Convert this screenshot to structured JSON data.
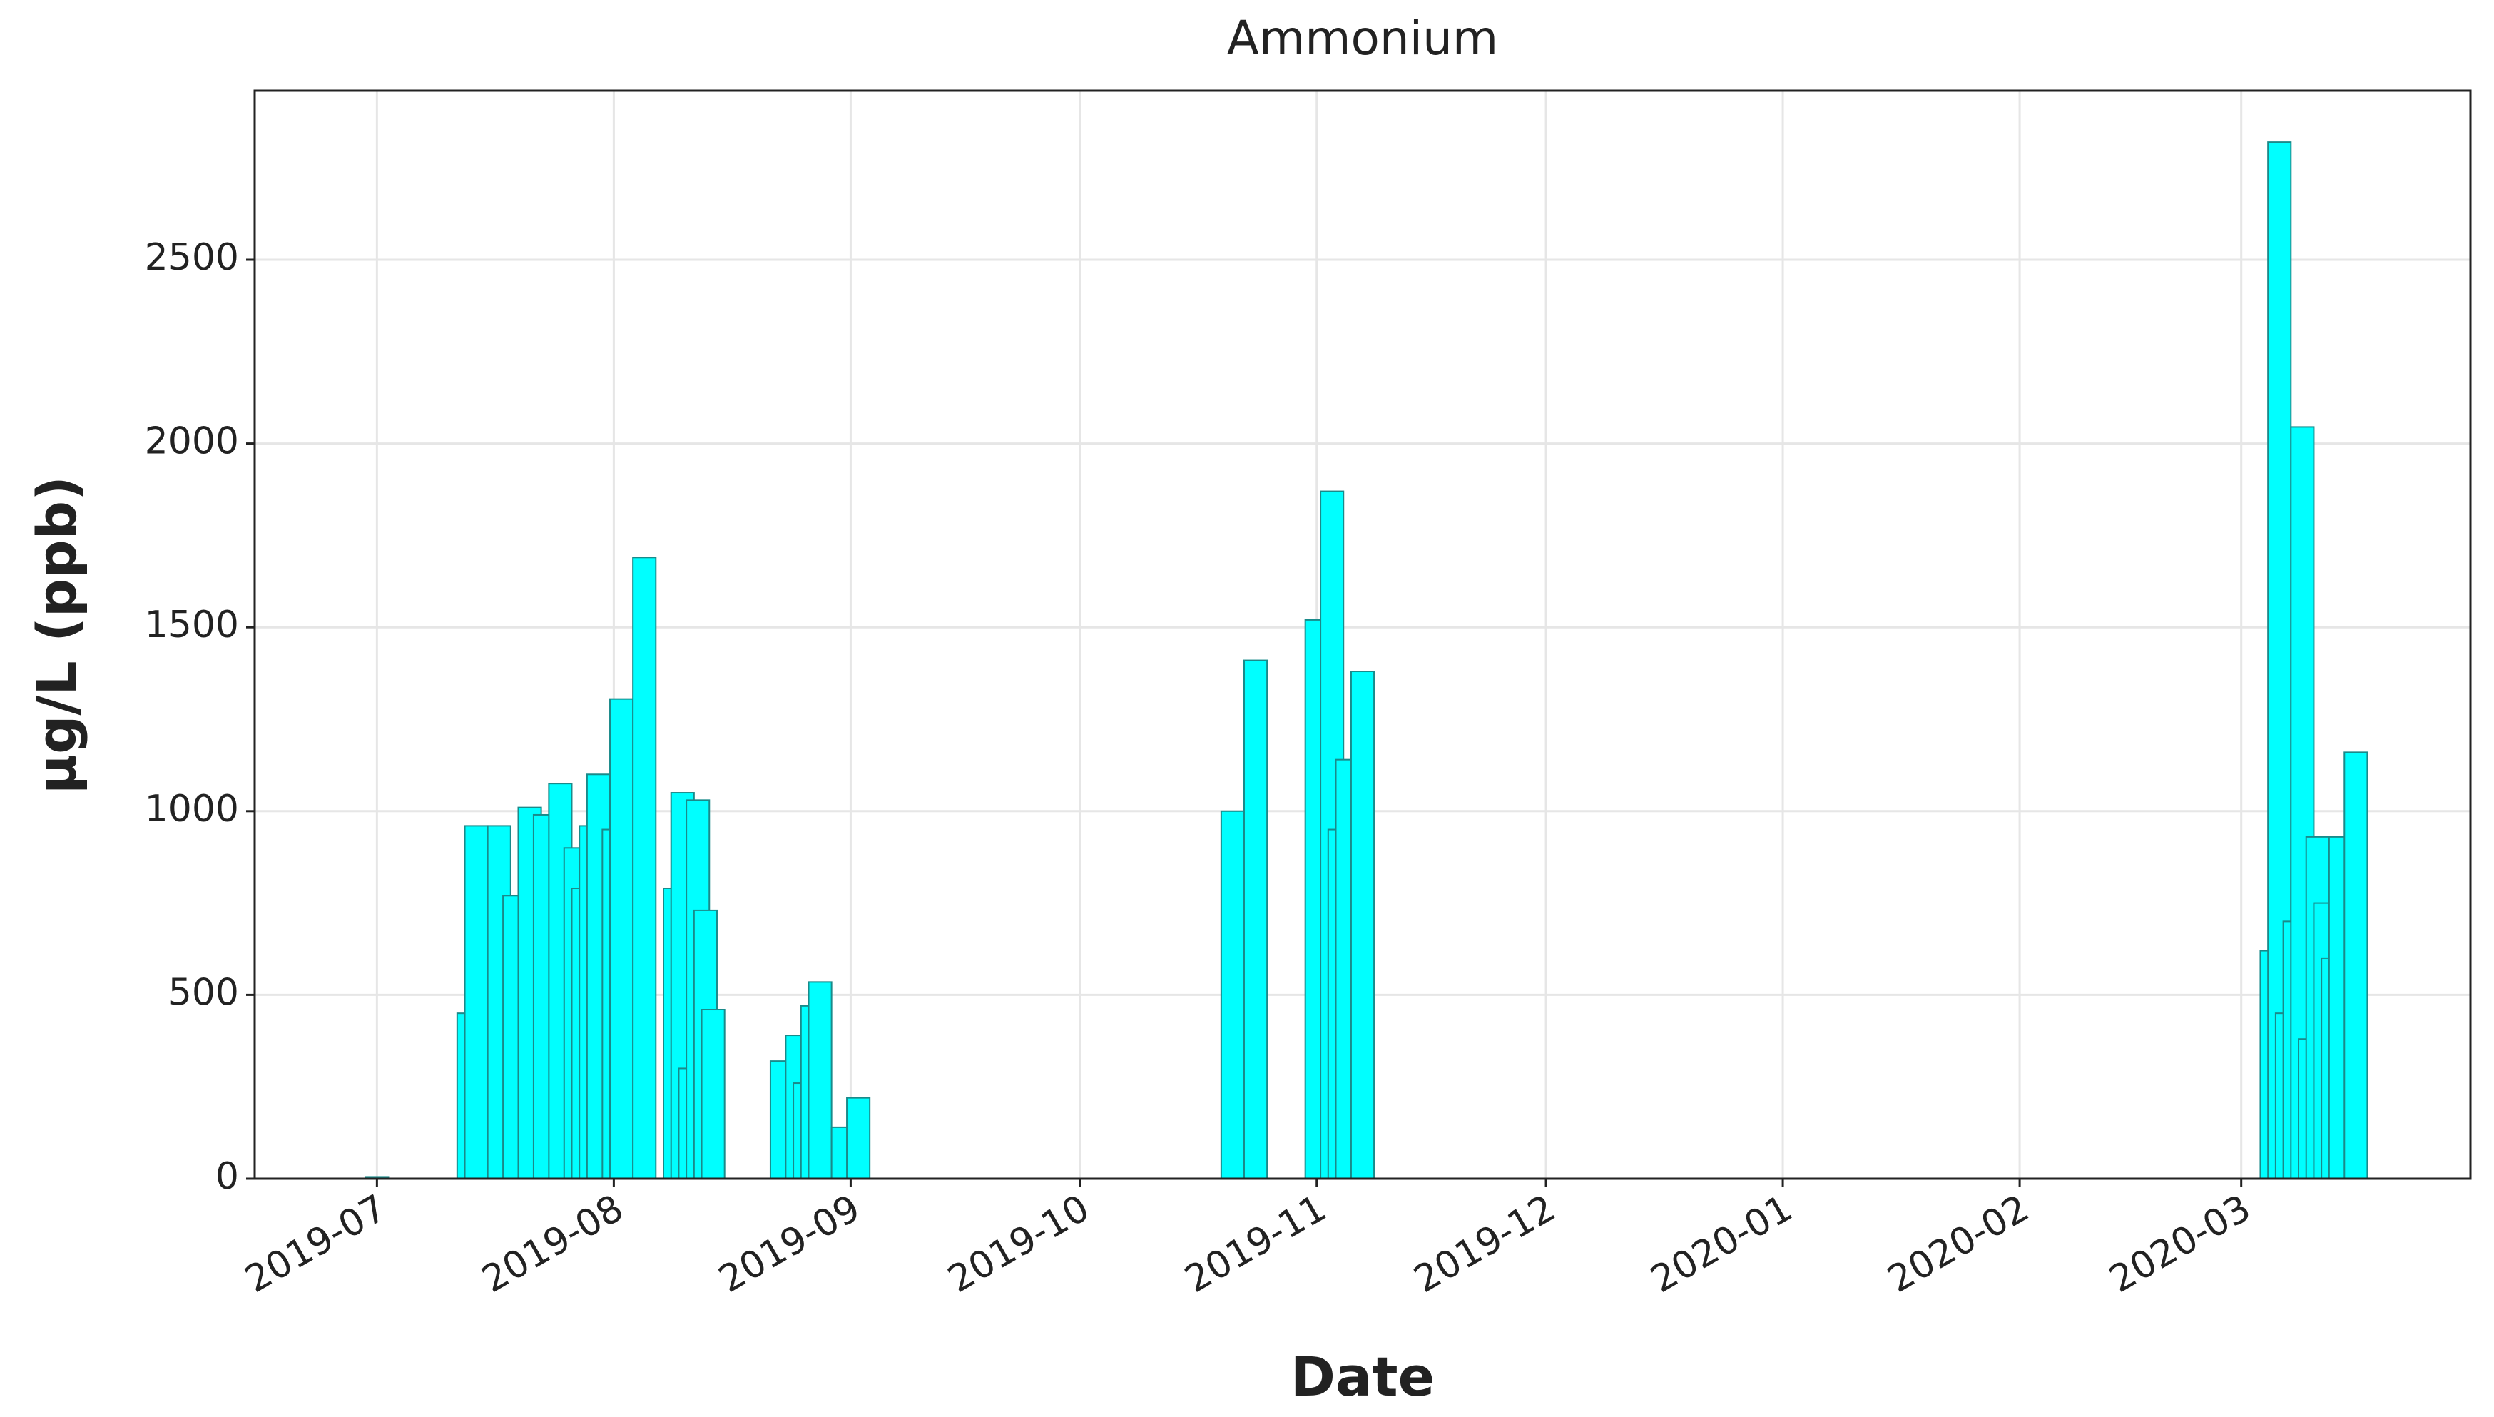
{
  "chart_data": {
    "type": "bar",
    "title": "Ammonium",
    "xlabel": "Date",
    "ylabel": "µg/L (ppb)",
    "x": [
      "2019-07-01",
      "2019-07-13",
      "2019-07-14",
      "2019-07-17",
      "2019-07-19",
      "2019-07-21",
      "2019-07-23",
      "2019-07-25",
      "2019-07-27",
      "2019-07-28",
      "2019-07-29",
      "2019-07-30",
      "2019-08-01",
      "2019-08-02",
      "2019-08-05",
      "2019-08-09",
      "2019-08-10",
      "2019-08-11",
      "2019-08-12",
      "2019-08-13",
      "2019-08-14",
      "2019-08-23",
      "2019-08-25",
      "2019-08-26",
      "2019-08-27",
      "2019-08-28",
      "2019-08-31",
      "2019-09-02",
      "2019-10-21",
      "2019-10-24",
      "2019-11-01",
      "2019-11-03",
      "2019-11-04",
      "2019-11-05",
      "2019-11-07",
      "2020-03-05",
      "2020-03-06",
      "2020-03-07",
      "2020-03-08",
      "2020-03-09",
      "2020-03-10",
      "2020-03-11",
      "2020-03-12",
      "2020-03-13",
      "2020-03-14",
      "2020-03-16"
    ],
    "values": [
      5,
      450,
      960,
      960,
      770,
      1010,
      990,
      1075,
      900,
      790,
      960,
      1100,
      950,
      1305,
      1690,
      790,
      1050,
      300,
      1030,
      730,
      460,
      320,
      390,
      260,
      470,
      535,
      140,
      220,
      1000,
      1410,
      1520,
      1870,
      950,
      1140,
      1380,
      620,
      2820,
      450,
      700,
      2045,
      380,
      930,
      750,
      600,
      930,
      1160
    ],
    "color": "#00ffff",
    "edgecolor": "#1a8a8a",
    "bar_width_days": 3,
    "xlim": [
      "2019-06-15",
      "2020-03-31"
    ],
    "xticks": [
      {
        "value": "2019-07-01",
        "label": "2019-07"
      },
      {
        "value": "2019-08-01",
        "label": "2019-08"
      },
      {
        "value": "2019-09-01",
        "label": "2019-09"
      },
      {
        "value": "2019-10-01",
        "label": "2019-10"
      },
      {
        "value": "2019-11-01",
        "label": "2019-11"
      },
      {
        "value": "2019-12-01",
        "label": "2019-12"
      },
      {
        "value": "2020-01-01",
        "label": "2020-01"
      },
      {
        "value": "2020-02-01",
        "label": "2020-02"
      },
      {
        "value": "2020-03-01",
        "label": "2020-03"
      }
    ],
    "ylim": [
      0,
      2960
    ],
    "yticks": [
      0,
      500,
      1000,
      1500,
      2000,
      2500
    ],
    "grid": true
  }
}
